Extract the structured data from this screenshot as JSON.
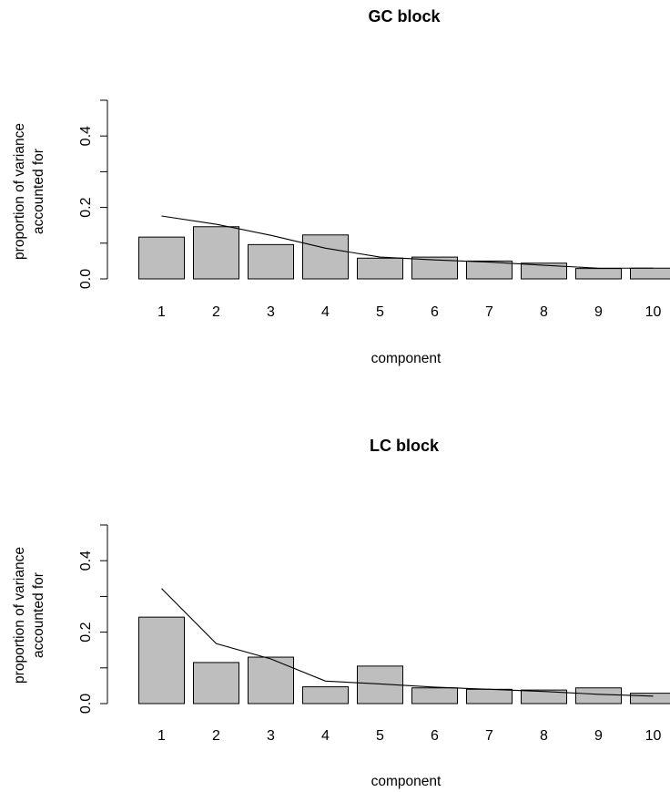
{
  "colors": {
    "bar_fill": "#bebebe",
    "bar_stroke": "#000000",
    "line": "#000000"
  },
  "chart_data": [
    {
      "type": "bar",
      "title": "GC block",
      "xlabel": "component",
      "ylabel": [
        "proportion of variance",
        "accounted for"
      ],
      "categories": [
        "1",
        "2",
        "3",
        "4",
        "5",
        "6",
        "7",
        "8",
        "9",
        "10"
      ],
      "values": [
        0.117,
        0.146,
        0.096,
        0.123,
        0.058,
        0.061,
        0.05,
        0.044,
        0.029,
        0.03
      ],
      "line_values": [
        0.176,
        0.153,
        0.122,
        0.086,
        0.061,
        0.053,
        0.047,
        0.038,
        0.03,
        0.03
      ],
      "ylim": [
        0,
        0.5
      ],
      "yticks": [
        0.0,
        0.2,
        0.4
      ],
      "ytick_labels": [
        "0.0",
        "0.2",
        "0.4"
      ],
      "grid": false,
      "legend": "none"
    },
    {
      "type": "bar",
      "title": "LC block",
      "xlabel": "component",
      "ylabel": [
        "proportion of variance",
        "accounted for"
      ],
      "categories": [
        "1",
        "2",
        "3",
        "4",
        "5",
        "6",
        "7",
        "8",
        "9",
        "10"
      ],
      "values": [
        0.242,
        0.115,
        0.13,
        0.047,
        0.105,
        0.044,
        0.04,
        0.038,
        0.044,
        0.029
      ],
      "line_values": [
        0.322,
        0.168,
        0.125,
        0.063,
        0.055,
        0.046,
        0.04,
        0.034,
        0.026,
        0.021
      ],
      "ylim": [
        0,
        0.5
      ],
      "yticks": [
        0.0,
        0.2,
        0.4
      ],
      "ytick_labels": [
        "0.0",
        "0.2",
        "0.4"
      ],
      "grid": false,
      "legend": "none"
    }
  ]
}
